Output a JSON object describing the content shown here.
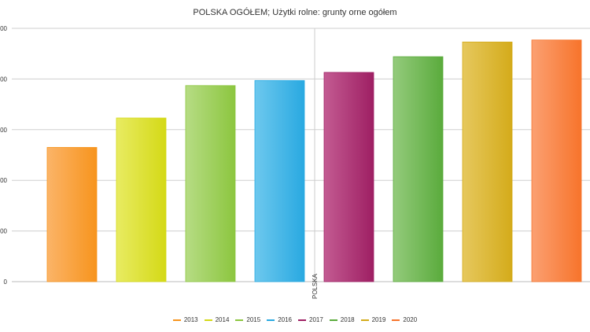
{
  "chart_data": {
    "type": "bar",
    "title": "POLSKA OGÓŁEM; Użytki rolne: grunty orne ogółem",
    "categories": [
      "POLSKA"
    ],
    "xlabel": "",
    "ylabel": "",
    "ylim": [
      0,
      500
    ],
    "y_tick_labels": [
      "00",
      "00",
      "00",
      "00",
      "00",
      "0"
    ],
    "grid": true,
    "legend_position": "bottom",
    "series": [
      {
        "name": "2013",
        "value": 265,
        "color": "#f7941d",
        "light": "#fbb468"
      },
      {
        "name": "2014",
        "value": 323,
        "color": "#d4d916",
        "light": "#e8eb62"
      },
      {
        "name": "2015",
        "value": 387,
        "color": "#8cc63f",
        "light": "#b6dc84"
      },
      {
        "name": "2016",
        "value": 397,
        "color": "#29a9e1",
        "light": "#6dc8ee"
      },
      {
        "name": "2017",
        "value": 413,
        "color": "#9e1f63",
        "light": "#c35b92"
      },
      {
        "name": "2018",
        "value": 444,
        "color": "#5aab3c",
        "light": "#94cb7c"
      },
      {
        "name": "2019",
        "value": 473,
        "color": "#d4ab1a",
        "light": "#e6c85e"
      },
      {
        "name": "2020",
        "value": 477,
        "color": "#f7742b",
        "light": "#fba072"
      }
    ]
  }
}
